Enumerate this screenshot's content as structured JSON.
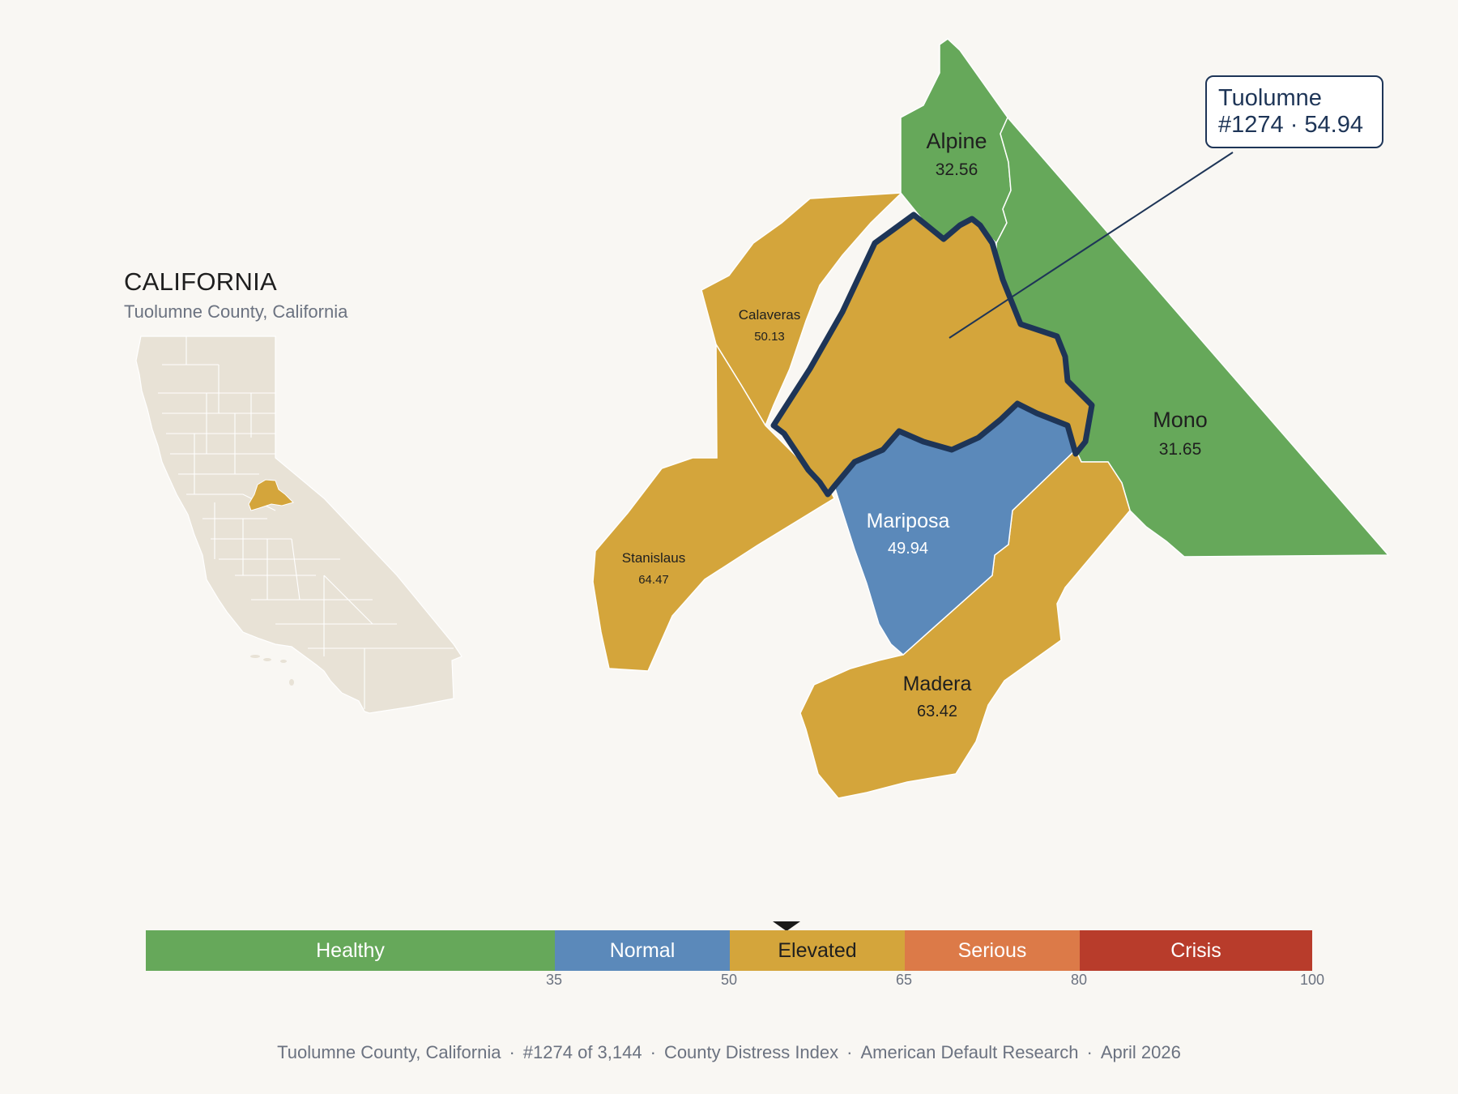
{
  "inset": {
    "title": "CALIFORNIA",
    "subtitle": "Tuolumne County, California"
  },
  "colors": {
    "healthy": "#66a85a",
    "normal": "#5b89ba",
    "elevated": "#d4a53b",
    "serious": "#dc7a48",
    "crisis": "#b83c2b",
    "highlight_outline": "#1e3557",
    "inset_land": "#e8e2d6"
  },
  "counties": [
    {
      "name": "Alpine",
      "value": "32.56",
      "category": "healthy"
    },
    {
      "name": "Mono",
      "value": "31.65",
      "category": "healthy"
    },
    {
      "name": "Calaveras",
      "value": "50.13",
      "category": "elevated"
    },
    {
      "name": "Stanislaus",
      "value": "64.47",
      "category": "elevated"
    },
    {
      "name": "Mariposa",
      "value": "49.94",
      "category": "normal"
    },
    {
      "name": "Madera",
      "value": "63.42",
      "category": "elevated"
    },
    {
      "name": "Tuolumne",
      "value": "54.94",
      "category": "elevated",
      "highlighted": true
    }
  ],
  "callout": {
    "line1": "Tuolumne",
    "line2": "#1274 · 54.94"
  },
  "legend": {
    "segments": [
      {
        "label": "Healthy",
        "from": 0,
        "to": 35,
        "color": "#66a85a"
      },
      {
        "label": "Normal",
        "from": 35,
        "to": 50,
        "color": "#5b89ba"
      },
      {
        "label": "Elevated",
        "from": 50,
        "to": 65,
        "color": "#d4a53b"
      },
      {
        "label": "Serious",
        "from": 65,
        "to": 80,
        "color": "#dc7a48"
      },
      {
        "label": "Crisis",
        "from": 80,
        "to": 100,
        "color": "#b83c2b"
      }
    ],
    "ticks": [
      "35",
      "50",
      "65",
      "80",
      "100"
    ],
    "marker_value": 54.94
  },
  "footer": {
    "place": "Tuolumne County, California",
    "rank": "#1274 of 3,144",
    "index": "County Distress Index",
    "source": "American Default Research",
    "date": "April 2026"
  }
}
